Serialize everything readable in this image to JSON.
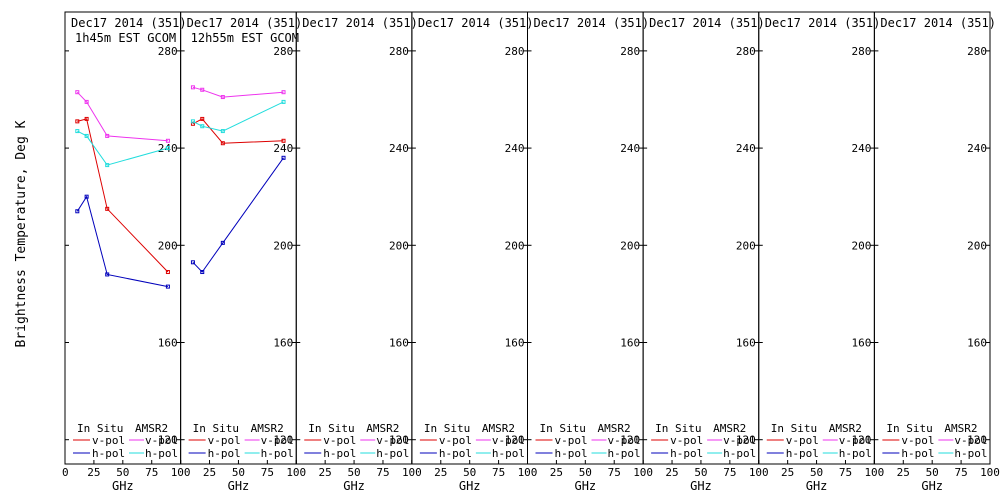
{
  "figure": {
    "ylabel": "Brightness Temperature, Deg K",
    "xlabel": "GHz",
    "ylim": [
      110,
      296
    ],
    "xlim": [
      0,
      100
    ],
    "yticks": [
      120,
      160,
      200,
      240,
      280
    ],
    "xticks": [
      0,
      25,
      50,
      75,
      100
    ],
    "legend": {
      "col1": "In Situ",
      "col2": "AMSR2",
      "vpol": "v-pol",
      "hpol": "h-pol"
    },
    "colors": {
      "insitu_v": "#dd0000",
      "insitu_h": "#0000bb",
      "amsr2_v": "#ee33ee",
      "amsr2_h": "#22dddd",
      "axes": "#000000"
    }
  },
  "chart_data": [
    {
      "type": "line",
      "title": "Dec17 2014 (351)",
      "subtitle": "1h45m EST GCOM",
      "xlabel": "GHz",
      "ylabel": "Brightness Temperature, Deg K",
      "xlim": [
        0,
        100
      ],
      "ylim": [
        110,
        296
      ],
      "series": [
        {
          "name": "In Situ v-pol",
          "x": [
            10.65,
            18.7,
            36.5,
            89
          ],
          "y": [
            251,
            252,
            215,
            189
          ]
        },
        {
          "name": "In Situ h-pol",
          "x": [
            10.65,
            18.7,
            36.5,
            89
          ],
          "y": [
            214,
            220,
            188,
            183
          ]
        },
        {
          "name": "AMSR2 v-pol",
          "x": [
            10.65,
            18.7,
            36.5,
            89
          ],
          "y": [
            263,
            259,
            245,
            243
          ]
        },
        {
          "name": "AMSR2 h-pol",
          "x": [
            10.65,
            18.7,
            36.5,
            89
          ],
          "y": [
            247,
            245,
            233,
            240
          ]
        }
      ]
    },
    {
      "type": "line",
      "title": "Dec17 2014 (351)",
      "subtitle": "12h55m EST GCOM",
      "xlabel": "GHz",
      "xlim": [
        0,
        100
      ],
      "ylim": [
        110,
        296
      ],
      "series": [
        {
          "name": "In Situ v-pol",
          "x": [
            10.65,
            18.7,
            36.5,
            89
          ],
          "y": [
            250,
            252,
            242,
            243
          ]
        },
        {
          "name": "In Situ h-pol",
          "x": [
            10.65,
            18.7,
            36.5,
            89
          ],
          "y": [
            193,
            189,
            201,
            236
          ]
        },
        {
          "name": "AMSR2 v-pol",
          "x": [
            10.65,
            18.7,
            36.5,
            89
          ],
          "y": [
            265,
            264,
            261,
            263
          ]
        },
        {
          "name": "AMSR2 h-pol",
          "x": [
            10.65,
            18.7,
            36.5,
            89
          ],
          "y": [
            251,
            249,
            247,
            259
          ]
        }
      ]
    },
    {
      "type": "line",
      "title": "Dec17 2014 (351)",
      "subtitle": "",
      "xlabel": "GHz",
      "xlim": [
        0,
        100
      ],
      "ylim": [
        110,
        296
      ],
      "series": []
    },
    {
      "type": "line",
      "title": "Dec17 2014 (351)",
      "subtitle": "",
      "xlabel": "GHz",
      "xlim": [
        0,
        100
      ],
      "ylim": [
        110,
        296
      ],
      "series": []
    },
    {
      "type": "line",
      "title": "Dec17 2014 (351)",
      "subtitle": "",
      "xlabel": "GHz",
      "xlim": [
        0,
        100
      ],
      "ylim": [
        110,
        296
      ],
      "series": []
    },
    {
      "type": "line",
      "title": "Dec17 2014 (351)",
      "subtitle": "",
      "xlabel": "GHz",
      "xlim": [
        0,
        100
      ],
      "ylim": [
        110,
        296
      ],
      "series": []
    },
    {
      "type": "line",
      "title": "Dec17 2014 (351)",
      "subtitle": "",
      "xlabel": "GHz",
      "xlim": [
        0,
        100
      ],
      "ylim": [
        110,
        296
      ],
      "series": []
    },
    {
      "type": "line",
      "title": "Dec17 2014 (351)",
      "subtitle": "",
      "xlabel": "GHz",
      "xlim": [
        0,
        100
      ],
      "ylim": [
        110,
        296
      ],
      "series": []
    }
  ]
}
